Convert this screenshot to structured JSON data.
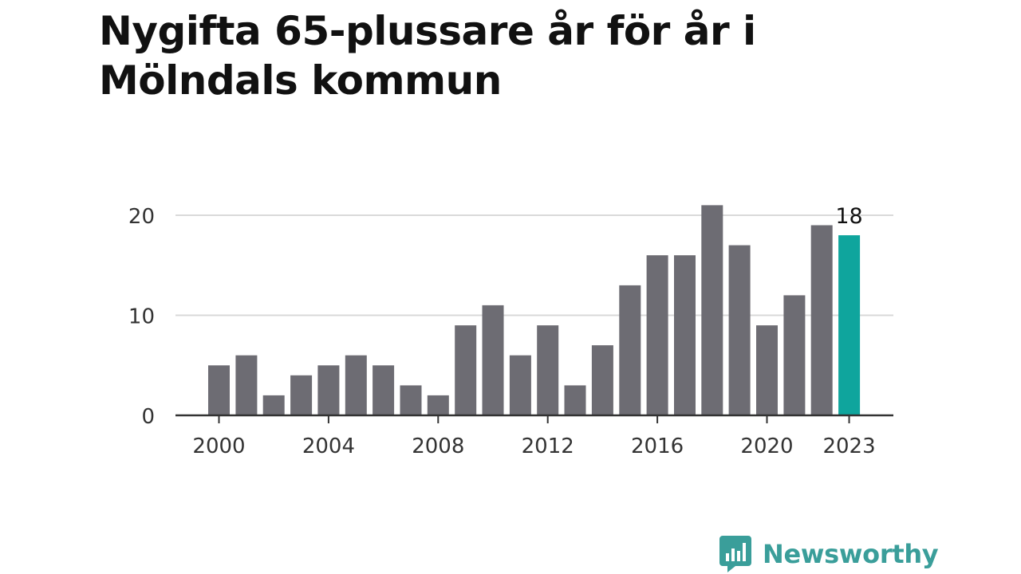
{
  "title": "Nygifta 65-plussare år för år i Mölndals kommun",
  "brand": {
    "name": "Newsworthy",
    "logo_icon": "bar-chart-speech-bubble-icon",
    "color": "#3a9e9a"
  },
  "chart_data": {
    "type": "bar",
    "title": "Nygifta 65-plussare år för år i Mölndals kommun",
    "xlabel": "",
    "ylabel": "",
    "categories": [
      2000,
      2001,
      2002,
      2003,
      2004,
      2005,
      2006,
      2007,
      2008,
      2009,
      2010,
      2011,
      2012,
      2013,
      2014,
      2015,
      2016,
      2017,
      2018,
      2019,
      2020,
      2021,
      2022,
      2023
    ],
    "values": [
      5,
      6,
      2,
      4,
      5,
      6,
      5,
      3,
      2,
      9,
      11,
      6,
      9,
      3,
      7,
      13,
      16,
      16,
      21,
      17,
      9,
      12,
      19,
      18
    ],
    "ylim": [
      0,
      21
    ],
    "y_ticks": [
      0,
      10,
      20
    ],
    "x_tick_labels": [
      "2000",
      "2004",
      "2008",
      "2012",
      "2016",
      "2020",
      "2023"
    ],
    "highlight_category": 2023,
    "highlight_label": "18",
    "grid": "horizontal",
    "colors": {
      "bar": "#6d6c73",
      "highlight": "#0fa59d",
      "grid": "#d9d9d9",
      "axis": "#333333"
    }
  }
}
